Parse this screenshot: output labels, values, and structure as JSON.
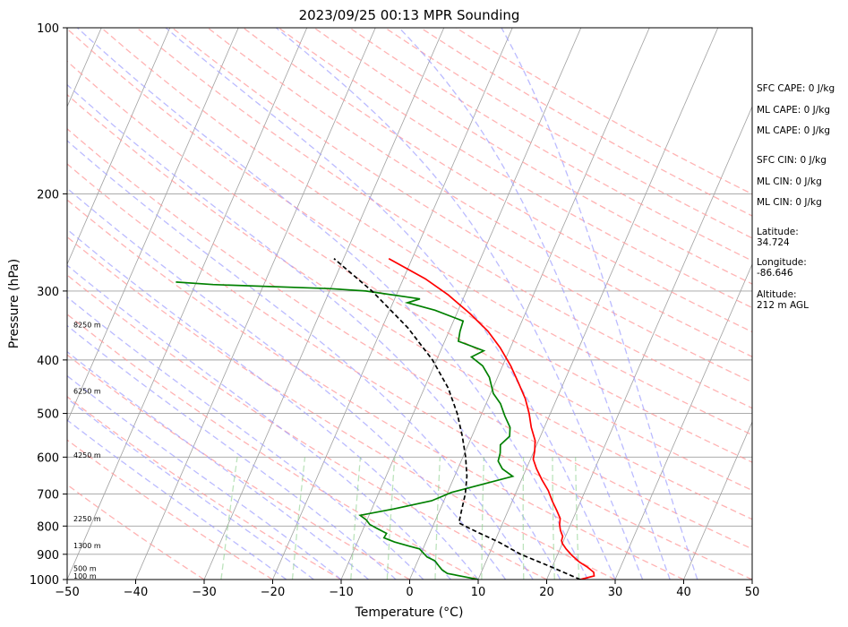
{
  "chart_data": {
    "type": "line",
    "subtype": "skew-t log-p sounding",
    "title": "2023/09/25 00:13 MPR Sounding",
    "xlabel": "Temperature (°C)",
    "ylabel": "Pressure (hPa)",
    "xlim": [
      -50,
      50
    ],
    "ylim": [
      1000,
      100
    ],
    "y_scale": "log",
    "x_ticks": [
      -50,
      -40,
      -30,
      -20,
      -10,
      0,
      10,
      20,
      30,
      40,
      50
    ],
    "y_ticks": [
      1000,
      900,
      800,
      700,
      600,
      500,
      400,
      300,
      200,
      100
    ],
    "grid": true,
    "height_markers": [
      {
        "label": "100 m",
        "pressure": 985
      },
      {
        "label": "500 m",
        "pressure": 955
      },
      {
        "label": "1300 m",
        "pressure": 868
      },
      {
        "label": "2250 m",
        "pressure": 775
      },
      {
        "label": "4250 m",
        "pressure": 595
      },
      {
        "label": "6250 m",
        "pressure": 455
      },
      {
        "label": "8250 m",
        "pressure": 345
      }
    ],
    "series": [
      {
        "color": "#ff0000",
        "style": "solid",
        "points": [
          [
            1000,
            24.9
          ],
          [
            985,
            26.7
          ],
          [
            970,
            26.4
          ],
          [
            950,
            25.2
          ],
          [
            930,
            23.7
          ],
          [
            905,
            22.2
          ],
          [
            880,
            20.9
          ],
          [
            860,
            20.0
          ],
          [
            850,
            19.7
          ],
          [
            835,
            19.6
          ],
          [
            815,
            18.9
          ],
          [
            795,
            18.4
          ],
          [
            775,
            18.1
          ],
          [
            750,
            17.1
          ],
          [
            720,
            15.8
          ],
          [
            690,
            14.6
          ],
          [
            660,
            13.0
          ],
          [
            630,
            11.5
          ],
          [
            605,
            10.4
          ],
          [
            585,
            10.1
          ],
          [
            560,
            9.5
          ],
          [
            530,
            8.1
          ],
          [
            500,
            6.9
          ],
          [
            470,
            5.4
          ],
          [
            440,
            3.4
          ],
          [
            410,
            1.2
          ],
          [
            380,
            -1.5
          ],
          [
            355,
            -4.3
          ],
          [
            330,
            -8.0
          ],
          [
            305,
            -12.4
          ],
          [
            285,
            -16.8
          ],
          [
            262,
            -23.4
          ]
        ]
      },
      {
        "color": "#008000",
        "style": "solid",
        "points": [
          [
            1000,
            10.0
          ],
          [
            990,
            8.1
          ],
          [
            975,
            5.1
          ],
          [
            960,
            4.1
          ],
          [
            945,
            3.4
          ],
          [
            925,
            2.5
          ],
          [
            910,
            1.1
          ],
          [
            895,
            0.3
          ],
          [
            880,
            -0.5
          ],
          [
            870,
            -2.2
          ],
          [
            855,
            -4.6
          ],
          [
            840,
            -6.4
          ],
          [
            825,
            -6.3
          ],
          [
            810,
            -7.8
          ],
          [
            795,
            -9.3
          ],
          [
            780,
            -10.1
          ],
          [
            765,
            -11.3
          ],
          [
            745,
            -6.8
          ],
          [
            720,
            -1.8
          ],
          [
            695,
            0.6
          ],
          [
            670,
            4.9
          ],
          [
            650,
            8.5
          ],
          [
            630,
            6.5
          ],
          [
            610,
            5.4
          ],
          [
            590,
            5.2
          ],
          [
            570,
            4.7
          ],
          [
            550,
            5.5
          ],
          [
            530,
            5.0
          ],
          [
            505,
            3.5
          ],
          [
            480,
            2.1
          ],
          [
            460,
            0.4
          ],
          [
            430,
            -1.2
          ],
          [
            410,
            -2.9
          ],
          [
            395,
            -5.1
          ],
          [
            385,
            -3.7
          ],
          [
            370,
            -8.0
          ],
          [
            355,
            -8.4
          ],
          [
            340,
            -8.6
          ],
          [
            325,
            -13.4
          ],
          [
            315,
            -17.9
          ],
          [
            310,
            -16.3
          ],
          [
            300,
            -24.7
          ],
          [
            297,
            -30.2
          ],
          [
            292,
            -47.4
          ],
          [
            289,
            -53.0
          ]
        ]
      },
      {
        "color": "#000000",
        "style": "dashed",
        "points": [
          [
            1000,
            24.9
          ],
          [
            950,
            20.0
          ],
          [
            900,
            14.6
          ],
          [
            855,
            10.6
          ],
          [
            820,
            6.8
          ],
          [
            790,
            3.6
          ],
          [
            750,
            3.2
          ],
          [
            700,
            2.7
          ],
          [
            650,
            1.8
          ],
          [
            600,
            0.4
          ],
          [
            550,
            -1.4
          ],
          [
            500,
            -3.6
          ],
          [
            450,
            -6.5
          ],
          [
            400,
            -10.6
          ],
          [
            350,
            -16.2
          ],
          [
            300,
            -23.8
          ],
          [
            262,
            -31.4
          ]
        ]
      }
    ],
    "annotations": [
      {
        "label": "SFC CAPE: 0 J/kg"
      },
      {
        "label": "ML CAPE: 0 J/kg"
      },
      {
        "label": "ML CAPE: 0 J/kg"
      },
      {
        "label": "SFC CIN: 0 J/kg"
      },
      {
        "label": "ML CIN: 0 J/kg"
      },
      {
        "label": "ML CIN: 0 J/kg"
      },
      {
        "label": "Latitude:",
        "value": "34.724"
      },
      {
        "label": "Longitude:",
        "value": "-86.646"
      },
      {
        "label": "Altitude:",
        "value": "212 m AGL"
      }
    ],
    "colors": {
      "temperature": "#ff0000",
      "dewpoint": "#008000",
      "parcel": "#000000",
      "dry_adiabats": "#ff9a9a",
      "moist_adiabats": "#9e9eff",
      "mixing_ratio": "#8fd08f",
      "isotherms": "#a0a0a0",
      "isobars": "#a0a0a0"
    }
  }
}
